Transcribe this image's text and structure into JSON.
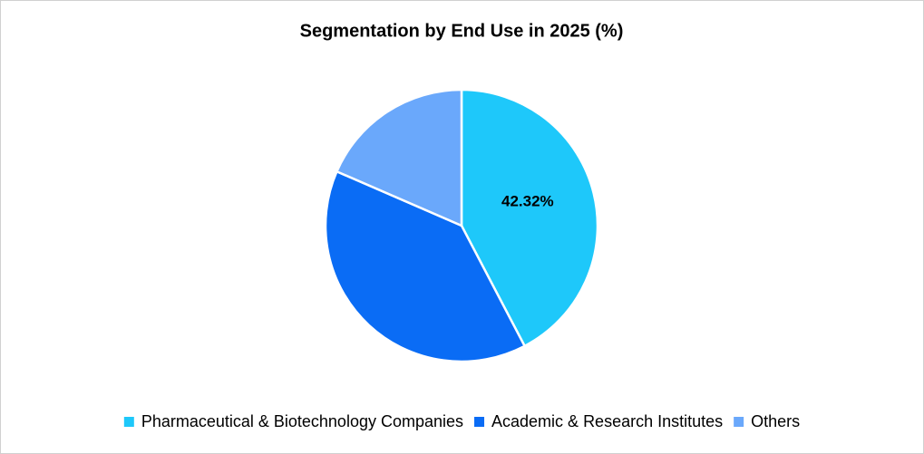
{
  "chart_data": {
    "type": "pie",
    "title": "Segmentation by End Use in 2025 (%)",
    "categories": [
      "Pharmaceutical & Biotechnology Companies",
      "Academic & Research Institutes",
      "Others"
    ],
    "values": [
      42.32,
      39.2,
      18.48
    ],
    "value_labels": [
      "42.32%",
      null,
      null
    ],
    "colors": [
      "#1ec8fa",
      "#0a6cf5",
      "#6aa8fb"
    ],
    "legend": "bottom"
  }
}
